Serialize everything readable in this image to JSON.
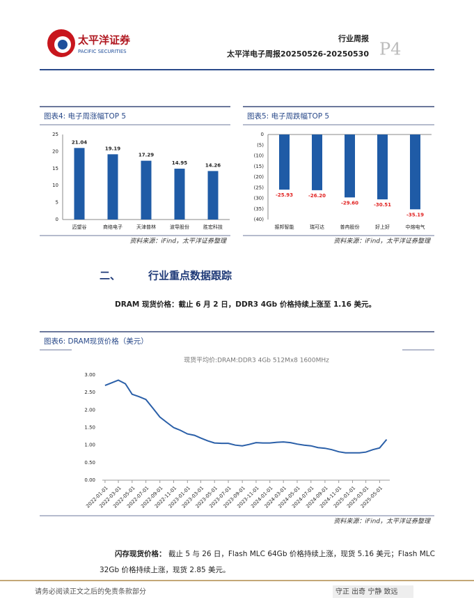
{
  "header": {
    "brand": "太平洋证券",
    "brand_en": "PACIFIC SECURITIES",
    "doc_type": "行业周报",
    "report_title": "太平洋电子周报20250526-20250530",
    "page": "P4"
  },
  "chart_data": [
    {
      "type": "bar",
      "caption": "图表4: 电子周涨幅TOP 5",
      "categories": [
        "迈望谷",
        "商络电子",
        "天津普林",
        "波导股份",
        "胜宏科技"
      ],
      "values": [
        21.04,
        19.19,
        17.29,
        14.95,
        14.26
      ],
      "color": "#1f5ba6",
      "ylim": [
        0,
        25
      ],
      "yticks": [
        0,
        5,
        10,
        15,
        20,
        25
      ],
      "source": "资料来源：iFind，太平洋证券整理"
    },
    {
      "type": "bar",
      "caption": "图表5: 电子周跌幅TOP 5",
      "categories": [
        "振邦智能",
        "瑞可达",
        "普冉股份",
        "好上好",
        "中熔电气"
      ],
      "values": [
        -25.93,
        -26.2,
        -29.6,
        -30.51,
        -35.19
      ],
      "value_labels": [
        "-25.93",
        "-26.20",
        "-29.60",
        "-30.51",
        "-35.19"
      ],
      "color": "#1f5ba6",
      "label_color": "#e0201f",
      "ylim": [
        -40,
        0
      ],
      "yticks": [
        0,
        {
          "value": -5,
          "label": "(5)"
        },
        {
          "value": -10,
          "label": "(10)"
        },
        {
          "value": -15,
          "label": "(15)"
        },
        {
          "value": -20,
          "label": "(20)"
        },
        {
          "value": -25,
          "label": "(25)"
        },
        {
          "value": -30,
          "label": "(30)"
        },
        {
          "value": -35,
          "label": "(35)"
        },
        {
          "value": -40,
          "label": "(40)"
        }
      ],
      "source": "资料来源：iFind，太平洋证券整理"
    },
    {
      "type": "line",
      "caption": "图表6: DRAM现货价格（美元）",
      "title": "现货平均价:DRAM:DDR3 4Gb 512Mx8 1600MHz",
      "color": "#2a5fa8",
      "x": [
        "2022-01-01",
        "2022-02-01",
        "2022-03-01",
        "2022-04-01",
        "2022-05-01",
        "2022-06-01",
        "2022-07-01",
        "2022-08-01",
        "2022-09-01",
        "2022-10-01",
        "2022-11-01",
        "2022-12-01",
        "2023-01-01",
        "2023-02-01",
        "2023-03-01",
        "2023-04-01",
        "2023-05-01",
        "2023-06-01",
        "2023-07-01",
        "2023-08-01",
        "2023-09-01",
        "2023-10-01",
        "2023-11-01",
        "2023-12-01",
        "2024-01-01",
        "2024-02-01",
        "2024-03-01",
        "2024-04-01",
        "2024-05-01",
        "2024-06-01",
        "2024-07-01",
        "2024-08-01",
        "2024-09-01",
        "2024-10-01",
        "2024-11-01",
        "2024-12-01",
        "2025-01-01",
        "2025-02-01",
        "2025-03-01",
        "2025-04-01",
        "2025-05-01",
        "2025-06-01"
      ],
      "values": [
        2.7,
        2.78,
        2.85,
        2.75,
        2.45,
        2.38,
        2.3,
        2.05,
        1.8,
        1.65,
        1.5,
        1.42,
        1.32,
        1.28,
        1.2,
        1.12,
        1.06,
        1.05,
        1.05,
        1.0,
        0.98,
        1.02,
        1.07,
        1.06,
        1.06,
        1.08,
        1.09,
        1.07,
        1.03,
        1.0,
        0.98,
        0.93,
        0.91,
        0.87,
        0.81,
        0.78,
        0.78,
        0.78,
        0.8,
        0.87,
        0.92,
        1.16
      ],
      "xlim": [
        "2021-12-20",
        "2025-06-15"
      ],
      "xticks": [
        "2022-01-01",
        "2022-03-01",
        "2022-05-01",
        "2022-07-01",
        "2022-09-01",
        "2022-11-01",
        "2023-01-01",
        "2023-03-01",
        "2023-05-01",
        "2023-07-01",
        "2023-09-01",
        "2023-11-01",
        "2024-01-01",
        "2024-03-01",
        "2024-05-01",
        "2024-07-01",
        "2024-09-01",
        "2024-11-01",
        "2025-01-01",
        "2025-03-01",
        "2025-05-01"
      ],
      "ylim": [
        0,
        3
      ],
      "yticks": [
        {
          "value": 0,
          "label": "0.00"
        },
        {
          "value": 0.5,
          "label": "0.50"
        },
        {
          "value": 1,
          "label": "1.00"
        },
        {
          "value": 1.5,
          "label": "1.50"
        },
        {
          "value": 2,
          "label": "2.00"
        },
        {
          "value": 2.5,
          "label": "2.50"
        },
        {
          "value": 3,
          "label": "3.00"
        }
      ],
      "source": "资料来源：iFind，太平洋证券整理"
    }
  ],
  "section": {
    "number": "二、",
    "title": "行业重点数据跟踪"
  },
  "paragraphs": [
    {
      "lead": "DRAM 现货价格：截止 6 月 2 日，DDR3 4Gb 价格持续上涨至 1.16 美元。"
    },
    {
      "lead": "闪存现货价格：",
      "body1": "截止 5 与 26 日，Flash MLC 64Gb 价格持续上涨，现货 5.16 美元；Flash MLC",
      "body2": "32Gb 价格持续上涨，现货 2.85 美元。"
    }
  ],
  "footer": {
    "disclaimer": "请务必阅读正文之后的免责条款部分",
    "motto": "守正 出奇 宁静 致远"
  }
}
